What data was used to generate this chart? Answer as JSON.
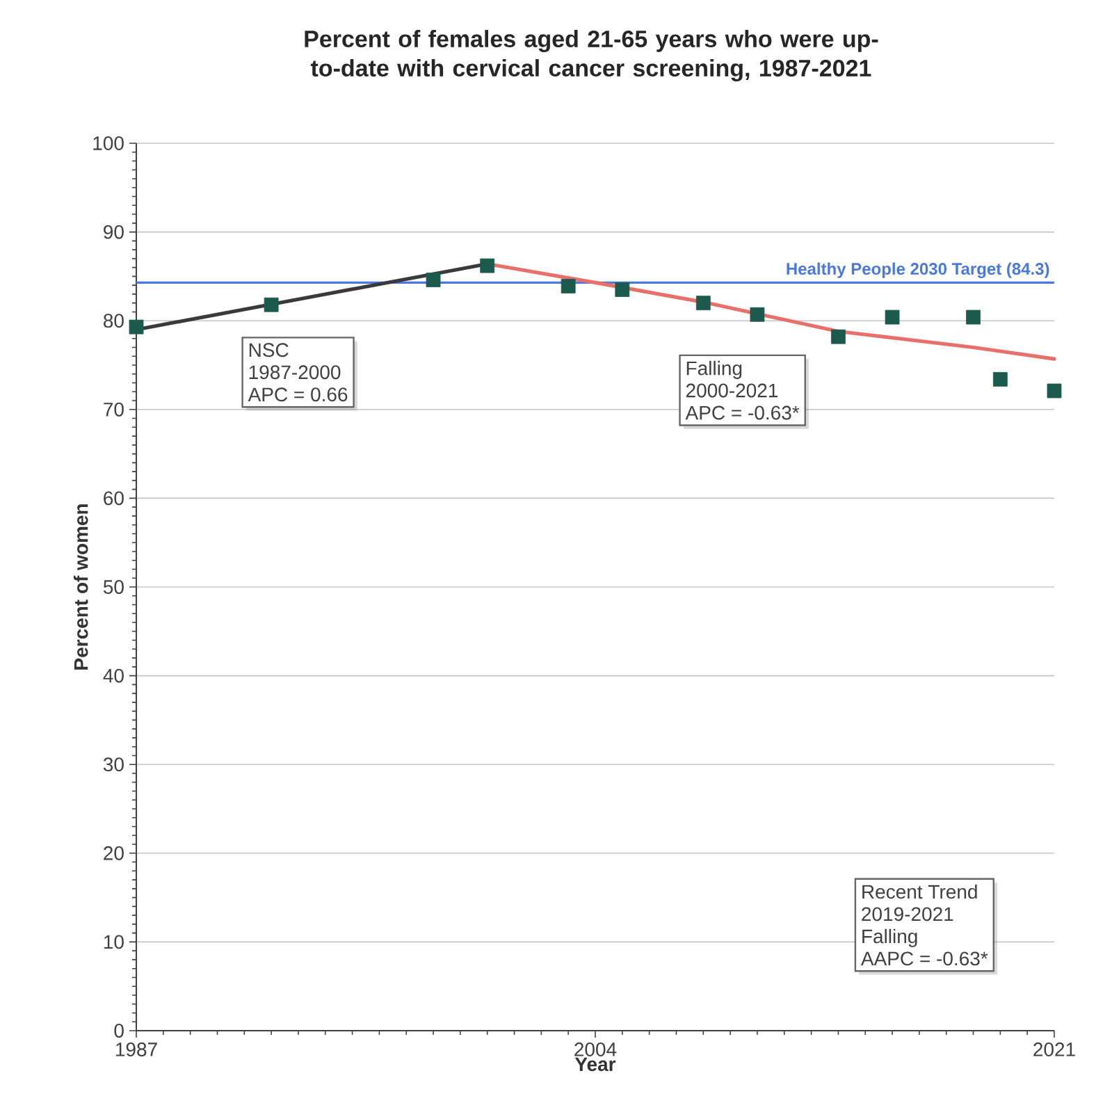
{
  "chart_data": {
    "type": "scatter",
    "title": "Percent of females aged 21-65 years who were up-to-date with cervical cancer screening, 1987-2021",
    "xlabel": "Year",
    "ylabel": "Percent of women",
    "xlim": [
      1987,
      2021
    ],
    "xticks": [
      1987,
      2004,
      {
        "value": 2021,
        "label": "2021"
      }
    ],
    "ylim": [
      0,
      100
    ],
    "yticks": [
      0,
      10,
      20,
      30,
      40,
      50,
      60,
      70,
      80,
      90,
      100
    ],
    "grid": "y",
    "series": [
      {
        "marker": "square",
        "color": "#1d5a4e",
        "x": [
          1987,
          1992,
          1998,
          2000,
          2003,
          2005,
          2008,
          2010,
          2013,
          2015,
          2018,
          2019,
          2021
        ],
        "values": [
          79.3,
          81.8,
          84.6,
          86.2,
          83.9,
          83.5,
          82.0,
          80.7,
          78.2,
          80.4,
          80.4,
          73.4,
          72.1
        ]
      },
      {
        "type": "line",
        "color": "#3a3a3a",
        "x": [
          1987,
          2000
        ],
        "values": [
          79.0,
          86.4
        ]
      },
      {
        "type": "line",
        "color": "#e8706a",
        "x": [
          2000,
          2004,
          2008,
          2013,
          2018,
          2021
        ],
        "values": [
          86.4,
          84.3,
          82.1,
          78.8,
          77.0,
          75.7
        ]
      }
    ],
    "ref_lines": [
      {
        "axis": "y",
        "value": 84.3,
        "label": "Healthy People 2030 Target (84.3)",
        "color": "#4a78e0"
      }
    ],
    "annotations": [
      "NSC",
      "1987-2000",
      "APC =  0.66",
      "Falling",
      "2000-2021",
      "APC = -0.63*",
      "Recent Trend",
      "2019-2021",
      "Falling",
      "AAPC = -0.63*"
    ]
  }
}
